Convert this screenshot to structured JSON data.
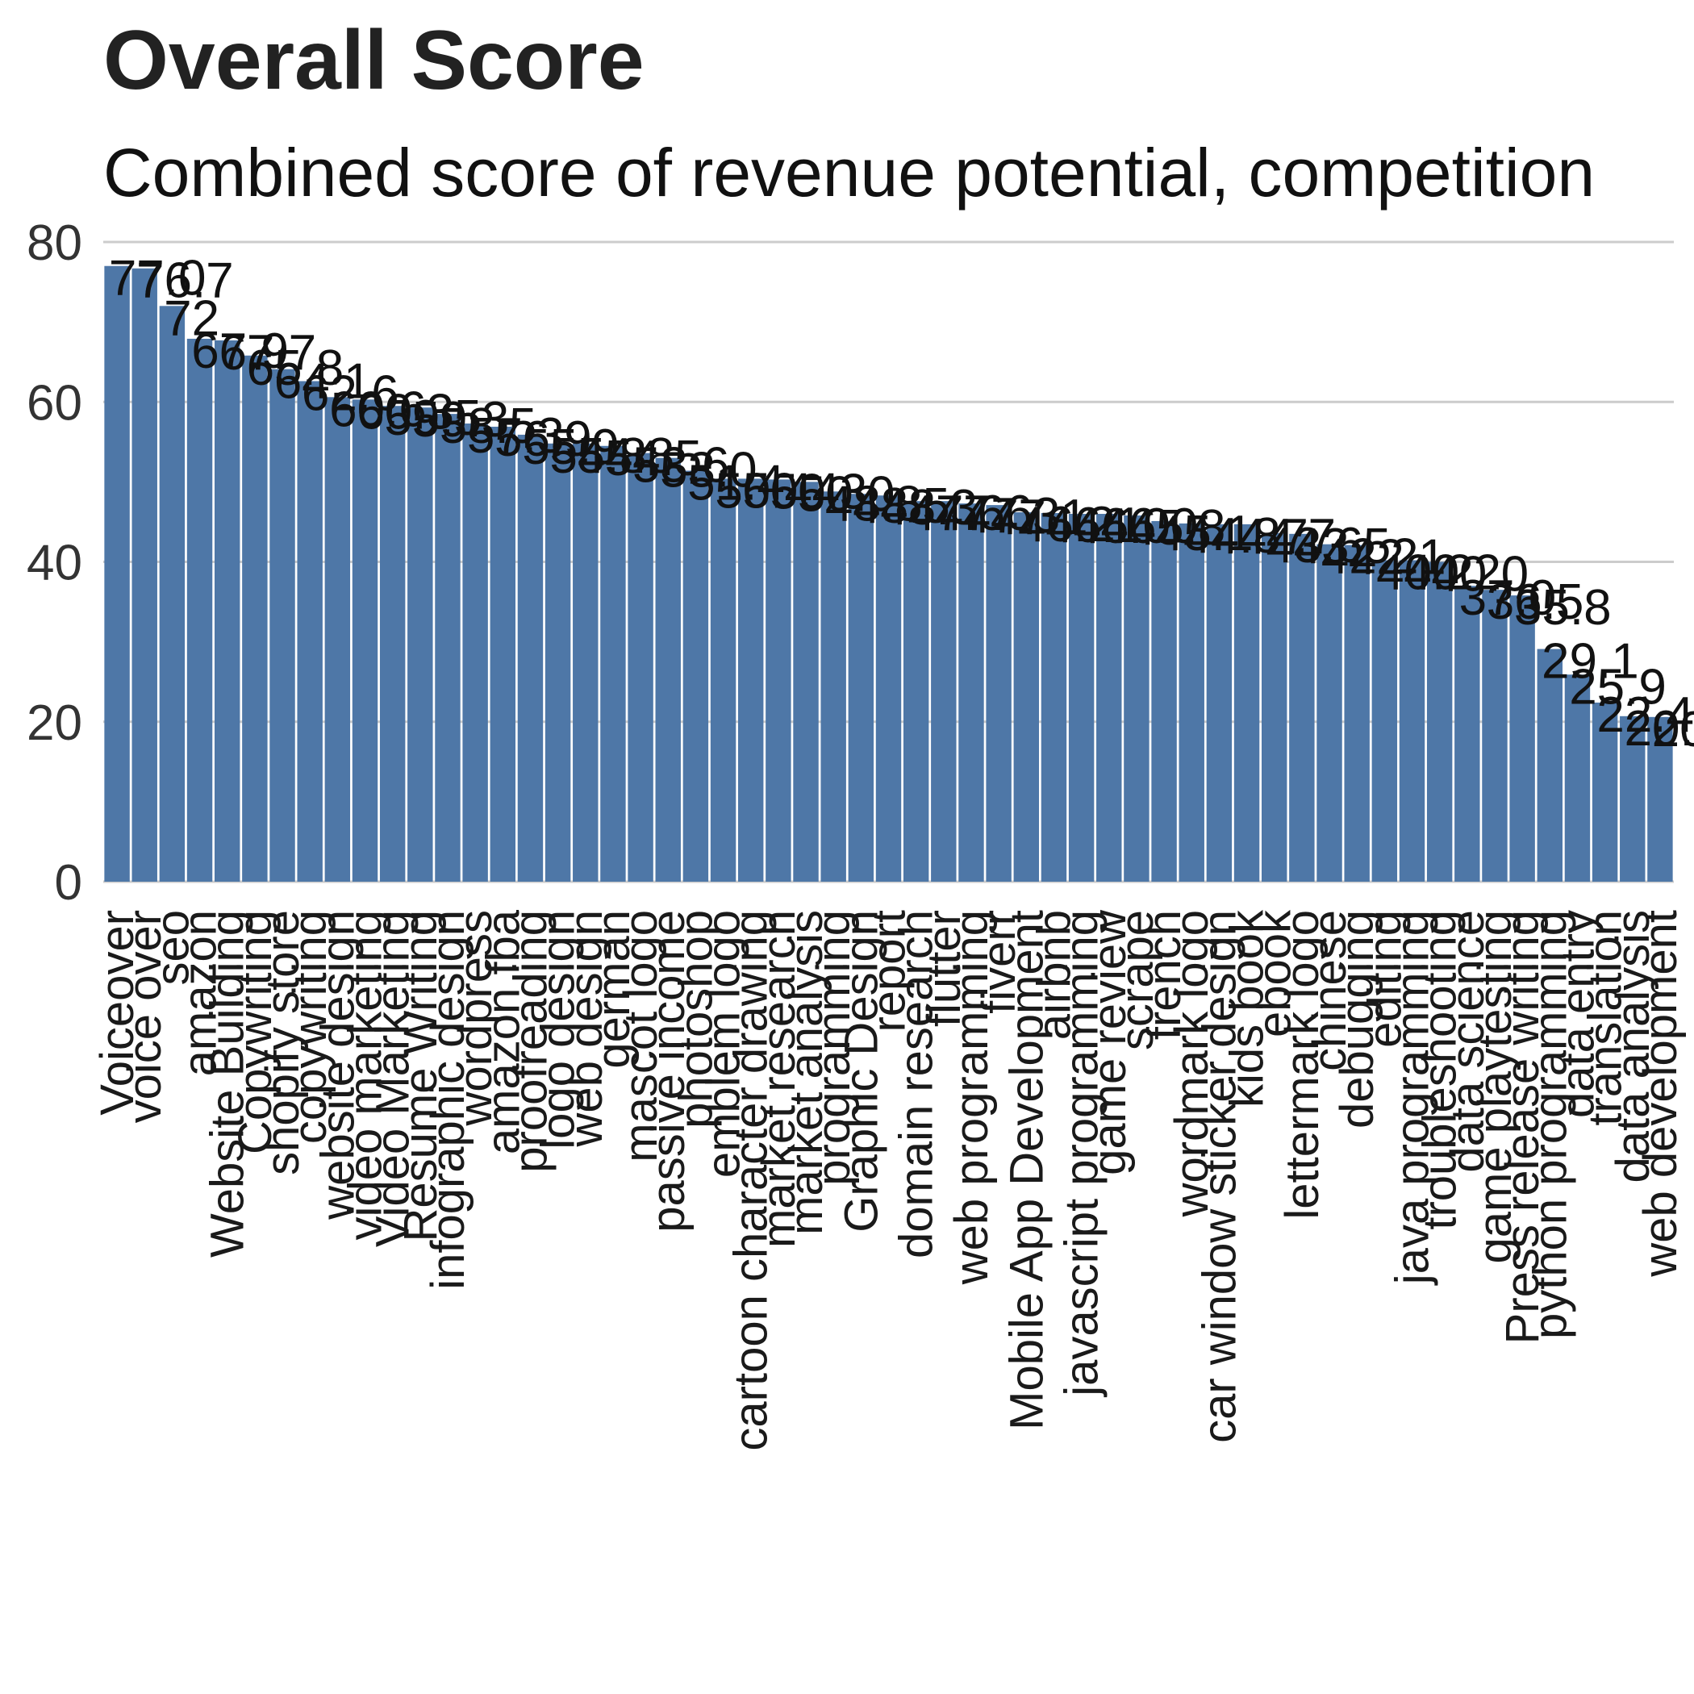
{
  "chart_data": {
    "type": "bar",
    "title": "Overall Score",
    "subtitle": "Combined score of revenue potential, competition",
    "xlabel": "",
    "ylabel": "",
    "ylim": [
      0,
      80
    ],
    "yticks": [
      0,
      20,
      40,
      60,
      80
    ],
    "grid": true,
    "bar_color": "#4e77a7",
    "categories": [
      "Voiceover",
      "voice over",
      "seo",
      "amazon",
      "Website Building",
      "Copywriting",
      "shopify store",
      "copywriting",
      "website design",
      "video marketing",
      "Video Marketing",
      "Resume Writing",
      "infographic design",
      "wordpress",
      "amazon fba",
      "proofreading",
      "logo design",
      "web design",
      "german",
      "mascot logo",
      "passive income",
      "photoshop",
      "emblem logo",
      "cartoon character drawing",
      "market research",
      "market analysis",
      "programming",
      "Graphic Design",
      "report",
      "domain research",
      "flutter",
      "web programming",
      "fiverr",
      "Mobile App Development",
      "airbnb",
      "javascript programming",
      "game review",
      "scrape",
      "french",
      "wordmark logo",
      "car window sticker design",
      "kids book",
      "ebook",
      "lettermark logo",
      "chinese",
      "debugging",
      "editing",
      "java programming",
      "troubleshooting",
      "data science",
      "game playtesting",
      "Press release writing",
      "python programming",
      "data entry",
      "translation",
      "data analysis",
      "web development"
    ],
    "values": [
      77.0,
      76.7,
      72.0,
      67.9,
      67.7,
      65.8,
      64.1,
      62.6,
      60.6,
      60.3,
      59.5,
      59.3,
      58.5,
      57.3,
      56.9,
      55.9,
      54.8,
      54.8,
      54.5,
      53.6,
      53.0,
      51.4,
      50.4,
      50.4,
      50.3,
      50.0,
      48.8,
      48.5,
      48.3,
      47.6,
      47.6,
      47.3,
      47.1,
      46.2,
      46.1,
      46.0,
      46.0,
      45.8,
      45.1,
      44.8,
      44.7,
      44.7,
      43.6,
      43.5,
      42.2,
      42.1,
      40.2,
      40.2,
      40.0,
      37.0,
      36.5,
      35.8,
      29.1,
      25.9,
      22.4,
      20.7,
      20.6
    ],
    "data_labels": [
      "77.0",
      "76.7",
      "72",
      "67.9",
      "67.7",
      "65.8",
      "64.1",
      "62.6",
      "60.6",
      "60.3",
      "59.5",
      "59.3",
      "58.5",
      "57.3",
      "56.9",
      "55.9",
      "54.8",
      "54.8",
      "54.5",
      "53.6",
      "53.0",
      "51.4",
      "50.4",
      "50.4",
      "50.3",
      "50.0",
      "48.8",
      "48.5",
      "48.3",
      "47.6",
      "47.6",
      "47.3",
      "47.1",
      "46.2",
      "46.1",
      "46.0",
      "46.0",
      "45.8",
      "45.1",
      "44.8",
      "44.7",
      "44.7",
      "43.6",
      "43.5",
      "42.2",
      "42.1",
      "40.2",
      "40.2",
      "40.0",
      "37.0",
      "36.5",
      "35.8",
      "29.1",
      "25.9",
      "22.4",
      "20.7",
      "20.6"
    ]
  }
}
